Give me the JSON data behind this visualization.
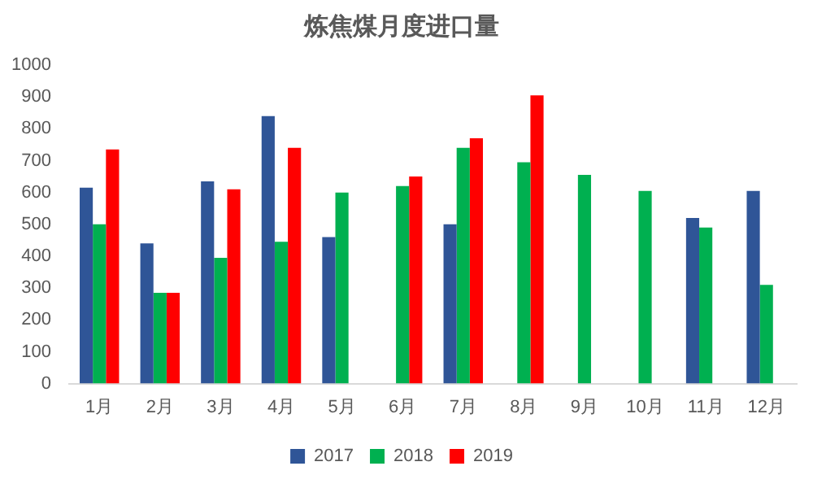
{
  "chart_data": {
    "type": "bar",
    "title": "炼焦煤月度进口量",
    "categories": [
      "1月",
      "2月",
      "3月",
      "4月",
      "5月",
      "6月",
      "7月",
      "8月",
      "9月",
      "10月",
      "11月",
      "12月"
    ],
    "series": [
      {
        "name": "2017",
        "color": "#2f5597",
        "values": [
          615,
          440,
          635,
          840,
          460,
          null,
          500,
          null,
          null,
          null,
          520,
          605
        ]
      },
      {
        "name": "2018",
        "color": "#00b050",
        "values": [
          500,
          285,
          395,
          445,
          600,
          620,
          740,
          695,
          655,
          605,
          490,
          310
        ]
      },
      {
        "name": "2019",
        "color": "#ff0000",
        "values": [
          735,
          285,
          610,
          740,
          null,
          650,
          770,
          905,
          null,
          null,
          null,
          null
        ]
      }
    ],
    "ylim": [
      0,
      1000
    ],
    "yticks": [
      0,
      100,
      200,
      300,
      400,
      500,
      600,
      700,
      800,
      900,
      1000
    ],
    "grid": false,
    "legend": "bottom"
  }
}
